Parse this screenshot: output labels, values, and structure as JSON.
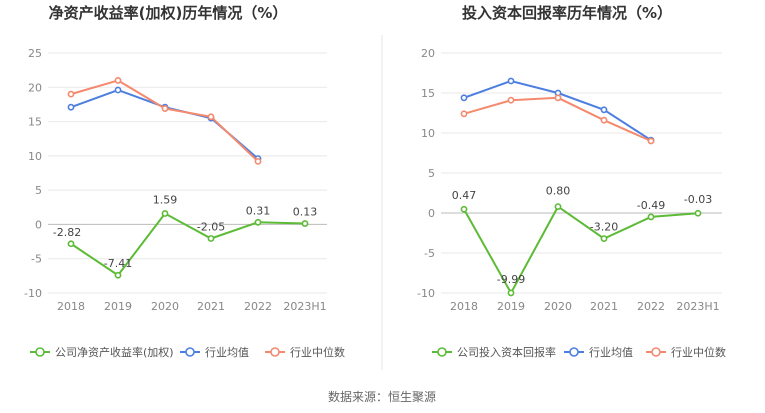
{
  "chart_data": [
    {
      "type": "line",
      "title": "净资产收益率(加权)历年情况（%）",
      "categories": [
        "2018",
        "2019",
        "2020",
        "2021",
        "2022",
        "2023H1"
      ],
      "ylim": [
        -10,
        25
      ],
      "yticks": [
        "25",
        "20",
        "15",
        "10",
        "5",
        "0",
        "-5",
        "-10"
      ],
      "grid": true,
      "series": [
        {
          "name": "公司净资产收益率(加权)",
          "color": "#5cbb36",
          "values": [
            -2.82,
            -7.41,
            1.59,
            -2.05,
            0.31,
            0.13
          ],
          "labels": [
            "-2.82",
            "-7.41",
            "1.59",
            "-2.05",
            "0.31",
            "0.13"
          ]
        },
        {
          "name": "行业均值",
          "color": "#4d7fe0",
          "values": [
            17.1,
            19.6,
            17.1,
            15.5,
            9.6,
            null
          ]
        },
        {
          "name": "行业中位数",
          "color": "#f4896e",
          "values": [
            19.0,
            21.0,
            16.9,
            15.7,
            9.2,
            null
          ]
        }
      ]
    },
    {
      "type": "line",
      "title": "投入资本回报率历年情况（%）",
      "categories": [
        "2018",
        "2019",
        "2020",
        "2021",
        "2022",
        "2023H1"
      ],
      "ylim": [
        -10,
        20
      ],
      "yticks": [
        "20",
        "15",
        "10",
        "5",
        "0",
        "-5",
        "-10"
      ],
      "grid": true,
      "series": [
        {
          "name": "公司投入资本回报率",
          "color": "#5cbb36",
          "values": [
            0.47,
            -9.99,
            0.8,
            -3.2,
            -0.49,
            -0.03
          ],
          "labels": [
            "0.47",
            "-9.99",
            "0.80",
            "-3.20",
            "-0.49",
            "-0.03"
          ]
        },
        {
          "name": "行业均值",
          "color": "#4d7fe0",
          "values": [
            14.4,
            16.5,
            15.0,
            12.9,
            9.1,
            null
          ]
        },
        {
          "name": "行业中位数",
          "color": "#f4896e",
          "values": [
            12.4,
            14.1,
            14.4,
            11.6,
            9.0,
            null
          ]
        }
      ]
    }
  ],
  "footer": {
    "source": "数据来源：恒生聚源"
  }
}
